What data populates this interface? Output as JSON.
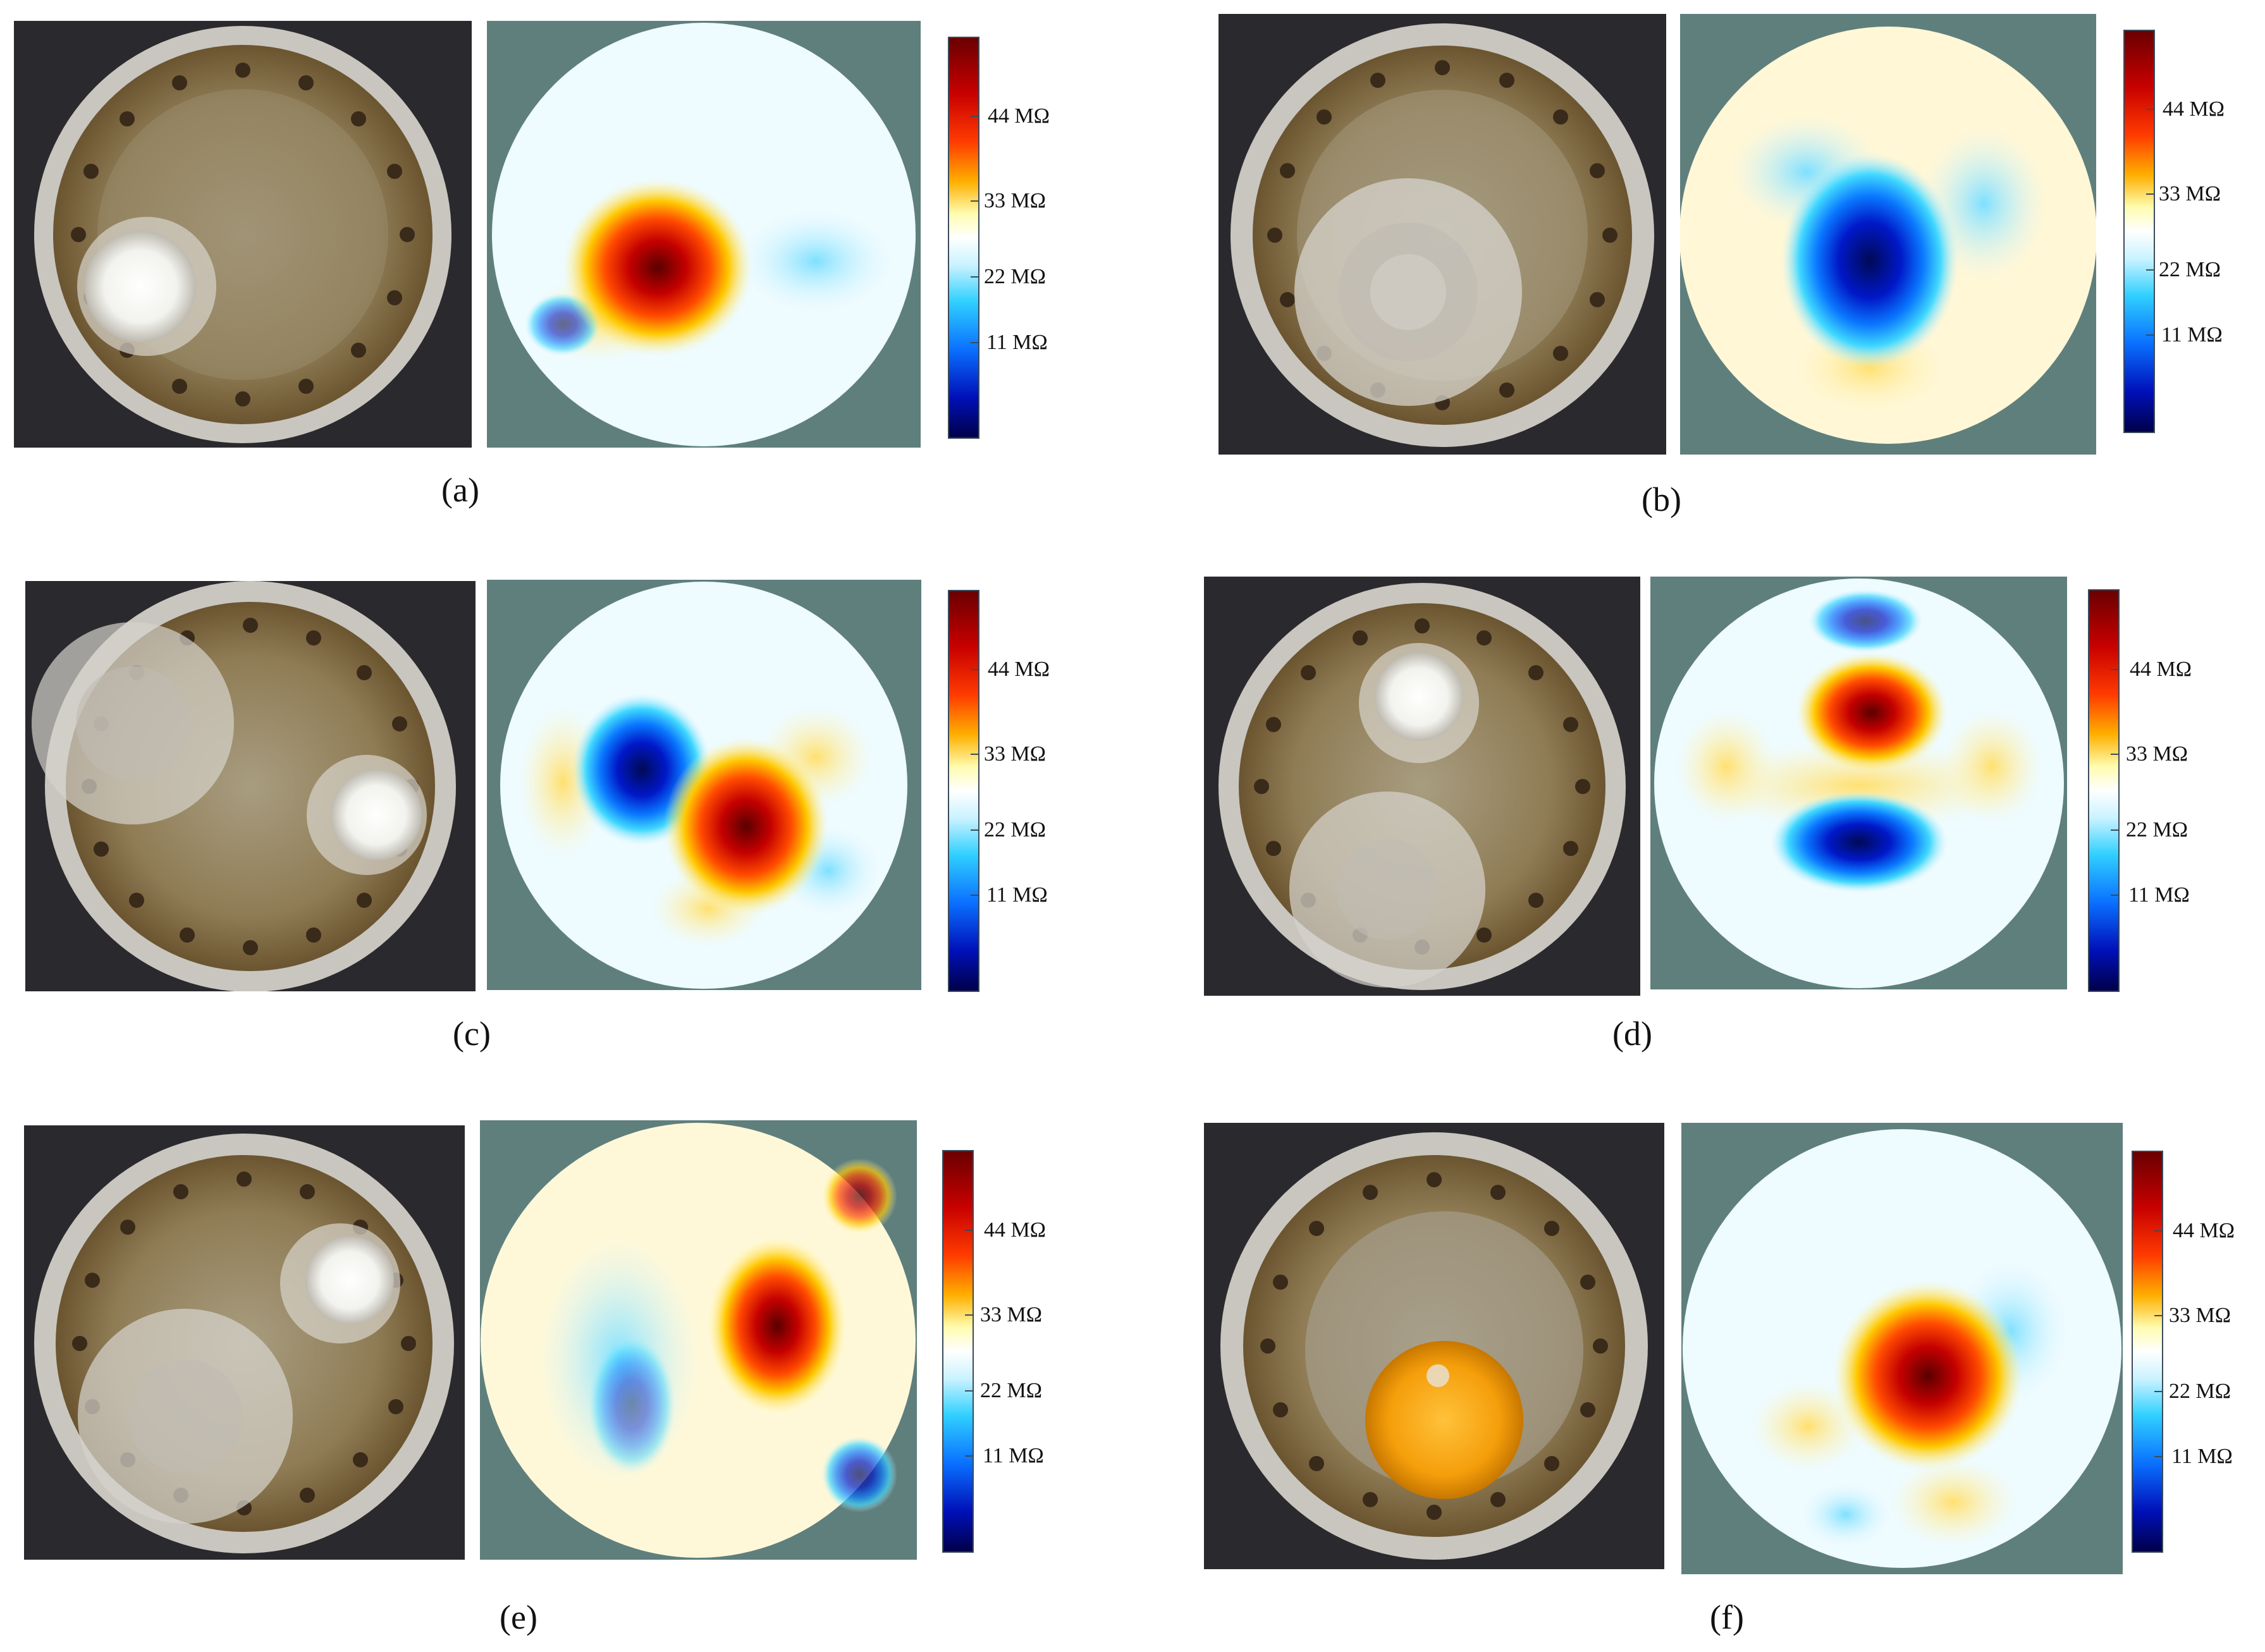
{
  "figure": {
    "panels": [
      {
        "caption": "(a)",
        "colorbar": [
          "44 MΩ",
          "33 MΩ",
          "22 MΩ",
          "11 MΩ"
        ],
        "photo_objects": "white-bottle",
        "anomaly": "high"
      },
      {
        "caption": "(b)",
        "colorbar": [
          "44 MΩ",
          "33 MΩ",
          "22 MΩ",
          "11 MΩ"
        ],
        "photo_objects": "clear-beaker",
        "anomaly": "low"
      },
      {
        "caption": "(c)",
        "colorbar": [
          "44 MΩ",
          "33 MΩ",
          "22 MΩ",
          "11 MΩ"
        ],
        "photo_objects": "beaker-and-bottle",
        "anomaly": "low-and-high"
      },
      {
        "caption": "(d)",
        "colorbar": [
          "44 MΩ",
          "33 MΩ",
          "22 MΩ",
          "11 MΩ"
        ],
        "photo_objects": "bottle-top-beaker-bottom",
        "anomaly": "high-top-low-bottom"
      },
      {
        "caption": "(e)",
        "colorbar": [
          "44 MΩ",
          "33 MΩ",
          "22 MΩ",
          "11 MΩ"
        ],
        "photo_objects": "beaker-and-bottle",
        "anomaly": "high-right-low-left"
      },
      {
        "caption": "(f)",
        "colorbar": [
          "44 MΩ",
          "33 MΩ",
          "22 MΩ",
          "11 MΩ"
        ],
        "photo_objects": "orange",
        "anomaly": "high"
      }
    ],
    "colors": {
      "background": "#5f7f7d",
      "high": "#8b0000",
      "low": "#000a8a"
    }
  }
}
